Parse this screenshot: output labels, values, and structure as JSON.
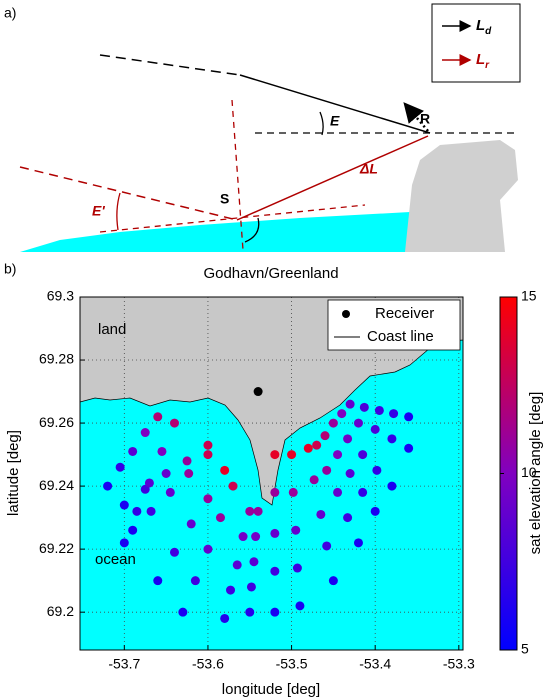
{
  "panel_a": {
    "label": "a)",
    "legend": [
      {
        "symbol": "L",
        "sub": "d"
      },
      {
        "symbol": "L",
        "sub": "r"
      }
    ],
    "labels": {
      "R": "R",
      "E": "E",
      "dL": "ΔL",
      "S": "S",
      "E2": "E'"
    }
  },
  "chart_data": {
    "type": "scatter",
    "panel_label": "b)",
    "title": "Godhavn/Greenland",
    "x_label": "longitude [deg]",
    "y_label": "latitude [deg]",
    "colorbar_label": "sat elevation angle [deg]",
    "xlim": [
      -53.753,
      -53.295
    ],
    "ylim": [
      69.188,
      69.3
    ],
    "xticks": [
      -53.7,
      -53.6,
      -53.5,
      -53.4,
      -53.3
    ],
    "yticks": [
      69.2,
      69.22,
      69.24,
      69.26,
      69.28,
      69.3
    ],
    "clim": [
      5,
      15
    ],
    "cticks": [
      5,
      10,
      15
    ],
    "colormap": [
      "#0000ff",
      "#8000c0",
      "#ff0000"
    ],
    "grid": true,
    "legend": "upper right",
    "receiver": {
      "name": "Receiver",
      "x": -53.54,
      "y": 69.27
    },
    "coastline_label": "Coast line",
    "annotations": [
      "land",
      "ocean"
    ],
    "series": [
      {
        "x": [
          -53.6,
          -53.625,
          -53.65,
          -53.675,
          -53.7
        ],
        "y": [
          69.253,
          69.248,
          69.244,
          69.239,
          69.234
        ],
        "c": [
          13,
          11,
          9,
          7.5,
          6
        ]
      },
      {
        "x": [
          -53.6,
          -53.623,
          -53.645,
          -53.668,
          -53.69
        ],
        "y": [
          69.25,
          69.244,
          69.238,
          69.232,
          69.226
        ],
        "c": [
          13,
          11,
          9,
          7.5,
          6
        ]
      },
      {
        "x": [
          -53.58,
          -53.6,
          -53.62,
          -53.64,
          -53.66
        ],
        "y": [
          69.245,
          69.236,
          69.228,
          69.219,
          69.21
        ],
        "c": [
          14,
          11,
          9,
          7.5,
          6
        ]
      },
      {
        "x": [
          -53.57,
          -53.585,
          -53.6,
          -53.615,
          -53.63
        ],
        "y": [
          69.24,
          69.23,
          69.22,
          69.21,
          69.2
        ],
        "c": [
          13,
          11,
          9,
          7.5,
          6
        ]
      },
      {
        "x": [
          -53.55,
          -53.558,
          -53.565,
          -53.573,
          -53.58
        ],
        "y": [
          69.232,
          69.224,
          69.215,
          69.207,
          69.198
        ],
        "c": [
          11,
          9.5,
          8.5,
          7.5,
          6.5
        ]
      },
      {
        "x": [
          -53.54,
          -53.543,
          -53.545,
          -53.548,
          -53.55
        ],
        "y": [
          69.232,
          69.224,
          69.216,
          69.208,
          69.2
        ],
        "c": [
          11,
          9.5,
          8.5,
          7.5,
          6.5
        ]
      },
      {
        "x": [
          -53.52,
          -53.52,
          -53.52,
          -53.52,
          -53.52
        ],
        "y": [
          69.25,
          69.238,
          69.225,
          69.213,
          69.2
        ],
        "c": [
          14,
          11,
          9,
          7.5,
          6
        ]
      },
      {
        "x": [
          -53.5,
          -53.498,
          -53.495,
          -53.493,
          -53.49
        ],
        "y": [
          69.25,
          69.238,
          69.226,
          69.214,
          69.202
        ],
        "c": [
          14,
          11,
          9,
          7.5,
          6
        ]
      },
      {
        "x": [
          -53.48,
          -53.473,
          -53.465,
          -53.458,
          -53.45
        ],
        "y": [
          69.252,
          69.242,
          69.231,
          69.221,
          69.21
        ],
        "c": [
          14,
          11,
          9,
          7.5,
          6
        ]
      },
      {
        "x": [
          -53.47,
          -53.458,
          -53.445,
          -53.433,
          -53.42
        ],
        "y": [
          69.253,
          69.245,
          69.238,
          69.23,
          69.222
        ],
        "c": [
          13,
          11,
          9,
          7.5,
          6
        ]
      },
      {
        "x": [
          -53.46,
          -53.445,
          -53.43,
          -53.415,
          -53.4
        ],
        "y": [
          69.256,
          69.25,
          69.244,
          69.238,
          69.232
        ],
        "c": [
          12,
          10,
          8.5,
          7,
          6
        ]
      },
      {
        "x": [
          -53.45,
          -53.433,
          -53.415,
          -53.398,
          -53.38
        ],
        "y": [
          69.26,
          69.255,
          69.25,
          69.245,
          69.24
        ],
        "c": [
          11,
          9.5,
          8,
          7,
          6
        ]
      },
      {
        "x": [
          -53.44,
          -53.42,
          -53.4,
          -53.38,
          -53.36
        ],
        "y": [
          69.263,
          69.26,
          69.258,
          69.255,
          69.252
        ],
        "c": [
          10,
          9,
          8,
          7,
          6
        ]
      },
      {
        "x": [
          -53.43,
          -53.413,
          -53.395,
          -53.378,
          -53.36
        ],
        "y": [
          69.266,
          69.265,
          69.264,
          69.263,
          69.262
        ],
        "c": [
          9,
          8,
          7.5,
          7,
          6
        ]
      },
      {
        "x": [
          -53.66,
          -53.675,
          -53.69,
          -53.705,
          -53.72
        ],
        "y": [
          69.262,
          69.257,
          69.251,
          69.246,
          69.24
        ],
        "c": [
          12,
          10,
          8.5,
          7,
          6
        ]
      },
      {
        "x": [
          -53.64,
          -53.655,
          -53.67,
          -53.685,
          -53.7
        ],
        "y": [
          69.26,
          69.251,
          69.241,
          69.232,
          69.222
        ],
        "c": [
          12,
          10,
          8.5,
          7,
          6
        ]
      }
    ]
  }
}
